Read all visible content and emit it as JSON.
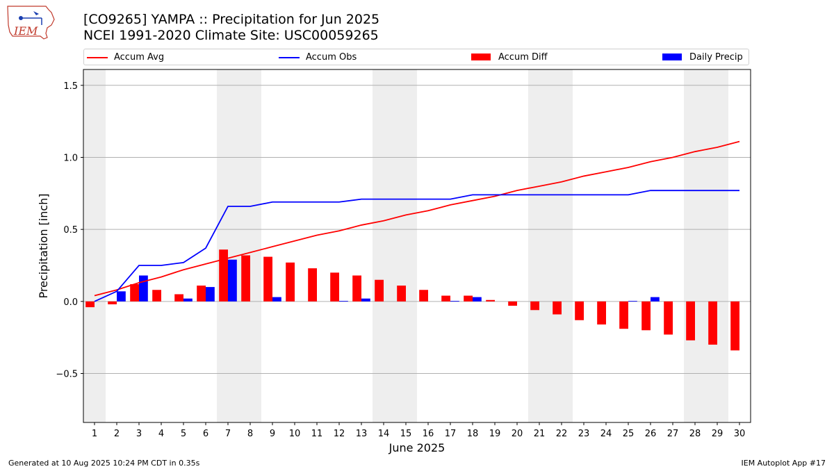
{
  "header": {
    "title": "[CO9265] YAMPA :: Precipitation for Jun 2025",
    "subtitle": "NCEI 1991-2020 Climate Site: USC00059265",
    "logo_text": "IEM"
  },
  "legend": [
    {
      "label": "Accum Avg",
      "kind": "line",
      "color": "#ff0000"
    },
    {
      "label": "Accum Obs",
      "kind": "line",
      "color": "#0000ff"
    },
    {
      "label": "Accum Diff",
      "kind": "bar",
      "color": "#ff0000"
    },
    {
      "label": "Daily Precip",
      "kind": "bar",
      "color": "#0000ff"
    }
  ],
  "footer": {
    "generated": "Generated at 10 Aug 2025 10:24 PM CDT in 0.35s",
    "app": "IEM Autoplot App #17"
  },
  "chart_data": {
    "type": "bar",
    "xlabel": "June 2025",
    "ylabel": "Precipitation [inch]",
    "x": [
      1,
      2,
      3,
      4,
      5,
      6,
      7,
      8,
      9,
      10,
      11,
      12,
      13,
      14,
      15,
      16,
      17,
      18,
      19,
      20,
      21,
      22,
      23,
      24,
      25,
      26,
      27,
      28,
      29,
      30
    ],
    "xlim": [
      0.5,
      30.5
    ],
    "ylim": [
      -0.84,
      1.61
    ],
    "yticks": [
      -0.5,
      0.0,
      0.5,
      1.0,
      1.5
    ],
    "ytick_labels": [
      "−0.5",
      "0.0",
      "0.5",
      "1.0",
      "1.5"
    ],
    "grid": "horizontal",
    "weekend_shading": [
      [
        0.5,
        1.5
      ],
      [
        6.5,
        8.5
      ],
      [
        13.5,
        15.5
      ],
      [
        20.5,
        22.5
      ],
      [
        27.5,
        29.5
      ]
    ],
    "shading_color": "#eeeeee",
    "series": [
      {
        "name": "Accum Avg",
        "type": "line",
        "color": "#ff0000",
        "values": [
          0.04,
          0.08,
          0.13,
          0.17,
          0.22,
          0.26,
          0.3,
          0.34,
          0.38,
          0.42,
          0.46,
          0.49,
          0.53,
          0.56,
          0.6,
          0.63,
          0.67,
          0.7,
          0.73,
          0.77,
          0.8,
          0.83,
          0.87,
          0.9,
          0.93,
          0.97,
          1.0,
          1.04,
          1.07,
          1.11
        ]
      },
      {
        "name": "Accum Obs",
        "type": "line",
        "color": "#0000ff",
        "values": [
          0.0,
          0.07,
          0.25,
          0.25,
          0.27,
          0.37,
          0.66,
          0.66,
          0.69,
          0.69,
          0.69,
          0.69,
          0.71,
          0.71,
          0.71,
          0.71,
          0.71,
          0.74,
          0.74,
          0.74,
          0.74,
          0.74,
          0.74,
          0.74,
          0.74,
          0.77,
          0.77,
          0.77,
          0.77,
          0.77
        ]
      },
      {
        "name": "Accum Diff",
        "type": "bar",
        "color": "#ff0000",
        "values": [
          -0.04,
          -0.02,
          0.12,
          0.08,
          0.05,
          0.11,
          0.36,
          0.32,
          0.31,
          0.27,
          0.23,
          0.2,
          0.18,
          0.15,
          0.11,
          0.08,
          0.04,
          0.04,
          0.01,
          -0.03,
          -0.06,
          -0.09,
          -0.13,
          -0.16,
          -0.19,
          -0.2,
          -0.23,
          -0.27,
          -0.3,
          -0.34
        ]
      },
      {
        "name": "Daily Precip",
        "type": "bar",
        "color": "#0000ff",
        "values": [
          0.0,
          0.07,
          0.18,
          0.0,
          0.02,
          0.1,
          0.29,
          0.0,
          0.03,
          0.0,
          0.0,
          0.004,
          0.02,
          0.0,
          0.0,
          0.0,
          0.004,
          0.03,
          0.0,
          0.0,
          0.0,
          0.0,
          0.0,
          0.0,
          0.004,
          0.03,
          0.0,
          0.0,
          0.0,
          0.0
        ]
      }
    ]
  }
}
